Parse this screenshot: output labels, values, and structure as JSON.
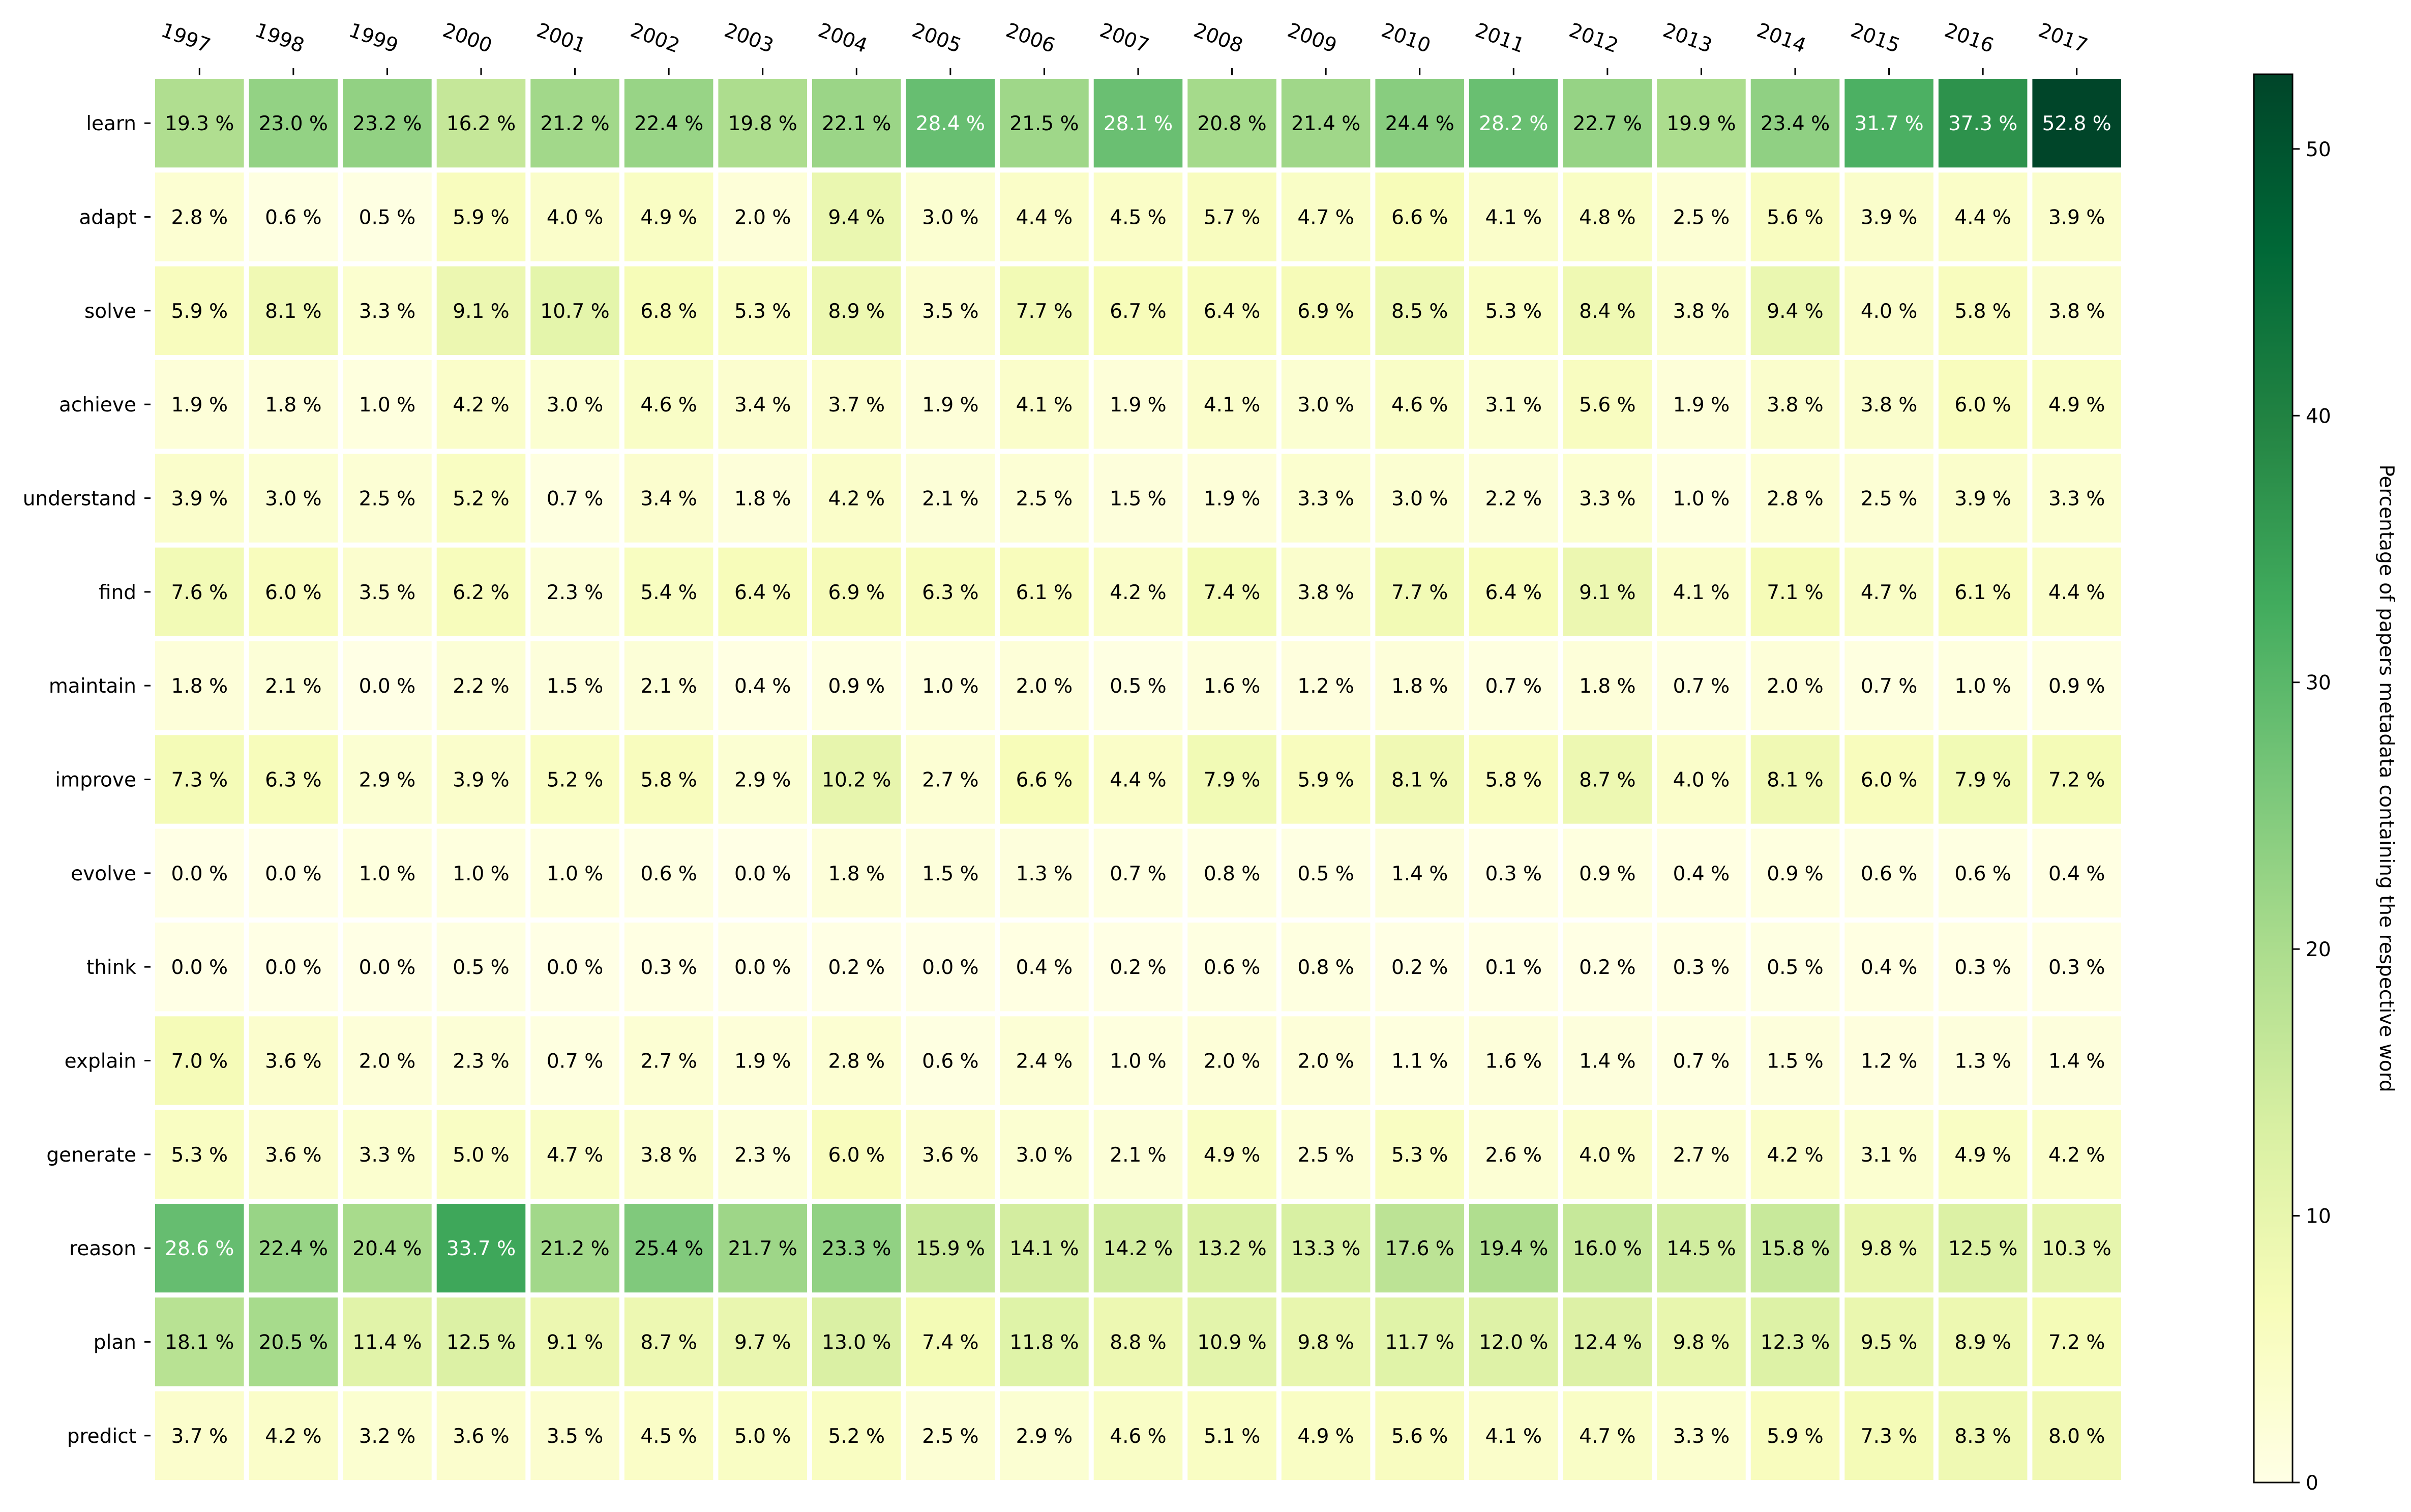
{
  "chart_data": {
    "type": "heatmap",
    "title": "",
    "x_tick_labels": [
      "1997",
      "1998",
      "1999",
      "2000",
      "2001",
      "2002",
      "2003",
      "2004",
      "2005",
      "2006",
      "2007",
      "2008",
      "2009",
      "2010",
      "2011",
      "2012",
      "2013",
      "2014",
      "2015",
      "2016",
      "2017"
    ],
    "y_tick_labels": [
      "learn",
      "adapt",
      "solve",
      "achieve",
      "understand",
      "find",
      "maintain",
      "improve",
      "evolve",
      "think",
      "explain",
      "generate",
      "reason",
      "plan",
      "predict"
    ],
    "value_suffix": " %",
    "values": [
      [
        19.3,
        23.0,
        23.2,
        16.2,
        21.2,
        22.4,
        19.8,
        22.1,
        28.4,
        21.5,
        28.1,
        20.8,
        21.4,
        24.4,
        28.2,
        22.7,
        19.9,
        23.4,
        31.7,
        37.3,
        52.8
      ],
      [
        2.8,
        0.6,
        0.5,
        5.9,
        4.0,
        4.9,
        2.0,
        9.4,
        3.0,
        4.4,
        4.5,
        5.7,
        4.7,
        6.6,
        4.1,
        4.8,
        2.5,
        5.6,
        3.9,
        4.4,
        3.9
      ],
      [
        5.9,
        8.1,
        3.3,
        9.1,
        10.7,
        6.8,
        5.3,
        8.9,
        3.5,
        7.7,
        6.7,
        6.4,
        6.9,
        8.5,
        5.3,
        8.4,
        3.8,
        9.4,
        4.0,
        5.8,
        3.8
      ],
      [
        1.9,
        1.8,
        1.0,
        4.2,
        3.0,
        4.6,
        3.4,
        3.7,
        1.9,
        4.1,
        1.9,
        4.1,
        3.0,
        4.6,
        3.1,
        5.6,
        1.9,
        3.8,
        3.8,
        6.0,
        4.9
      ],
      [
        3.9,
        3.0,
        2.5,
        5.2,
        0.7,
        3.4,
        1.8,
        4.2,
        2.1,
        2.5,
        1.5,
        1.9,
        3.3,
        3.0,
        2.2,
        3.3,
        1.0,
        2.8,
        2.5,
        3.9,
        3.3
      ],
      [
        7.6,
        6.0,
        3.5,
        6.2,
        2.3,
        5.4,
        6.4,
        6.9,
        6.3,
        6.1,
        4.2,
        7.4,
        3.8,
        7.7,
        6.4,
        9.1,
        4.1,
        7.1,
        4.7,
        6.1,
        4.4
      ],
      [
        1.8,
        2.1,
        0.0,
        2.2,
        1.5,
        2.1,
        0.4,
        0.9,
        1.0,
        2.0,
        0.5,
        1.6,
        1.2,
        1.8,
        0.7,
        1.8,
        0.7,
        2.0,
        0.7,
        1.0,
        0.9
      ],
      [
        7.3,
        6.3,
        2.9,
        3.9,
        5.2,
        5.8,
        2.9,
        10.2,
        2.7,
        6.6,
        4.4,
        7.9,
        5.9,
        8.1,
        5.8,
        8.7,
        4.0,
        8.1,
        6.0,
        7.9,
        7.2
      ],
      [
        0.0,
        0.0,
        1.0,
        1.0,
        1.0,
        0.6,
        0.0,
        1.8,
        1.5,
        1.3,
        0.7,
        0.8,
        0.5,
        1.4,
        0.3,
        0.9,
        0.4,
        0.9,
        0.6,
        0.6,
        0.4
      ],
      [
        0.0,
        0.0,
        0.0,
        0.5,
        0.0,
        0.3,
        0.0,
        0.2,
        0.0,
        0.4,
        0.2,
        0.6,
        0.8,
        0.2,
        0.1,
        0.2,
        0.3,
        0.5,
        0.4,
        0.3,
        0.3
      ],
      [
        7.0,
        3.6,
        2.0,
        2.3,
        0.7,
        2.7,
        1.9,
        2.8,
        0.6,
        2.4,
        1.0,
        2.0,
        2.0,
        1.1,
        1.6,
        1.4,
        0.7,
        1.5,
        1.2,
        1.3,
        1.4
      ],
      [
        5.3,
        3.6,
        3.3,
        5.0,
        4.7,
        3.8,
        2.3,
        6.0,
        3.6,
        3.0,
        2.1,
        4.9,
        2.5,
        5.3,
        2.6,
        4.0,
        2.7,
        4.2,
        3.1,
        4.9,
        4.2
      ],
      [
        28.6,
        22.4,
        20.4,
        33.7,
        21.2,
        25.4,
        21.7,
        23.3,
        15.9,
        14.1,
        14.2,
        13.2,
        13.3,
        17.6,
        19.4,
        16.0,
        14.5,
        15.8,
        9.8,
        12.5,
        10.3
      ],
      [
        18.1,
        20.5,
        11.4,
        12.5,
        9.1,
        8.7,
        9.7,
        13.0,
        7.4,
        11.8,
        8.8,
        10.9,
        9.8,
        11.7,
        12.0,
        12.4,
        9.8,
        12.3,
        9.5,
        8.9,
        7.2
      ],
      [
        3.7,
        4.2,
        3.2,
        3.6,
        3.5,
        4.5,
        5.0,
        5.2,
        2.5,
        2.9,
        4.6,
        5.1,
        4.9,
        5.6,
        4.1,
        4.7,
        3.3,
        5.9,
        7.3,
        8.3,
        8.0
      ]
    ],
    "colormap": "YlGn",
    "colormap_stops": [
      "#ffffe5",
      "#f7fcb9",
      "#d9f0a3",
      "#addd8e",
      "#78c679",
      "#41ab5d",
      "#238443",
      "#006837",
      "#004529"
    ],
    "vmin": 0,
    "vmax": 52.8,
    "x_ticks_position": "top",
    "grid": false,
    "colorbar": {
      "label": "Percentage of papers metadata containing the respective word",
      "ticks": [
        0,
        10,
        20,
        30,
        40,
        50
      ],
      "placement": "right"
    }
  }
}
